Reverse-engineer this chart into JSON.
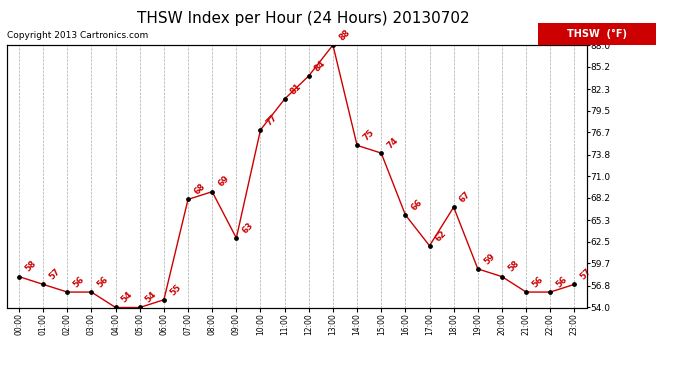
{
  "title": "THSW Index per Hour (24 Hours) 20130702",
  "copyright": "Copyright 2013 Cartronics.com",
  "legend_label": "THSW  (°F)",
  "hours": [
    "00:00",
    "01:00",
    "02:00",
    "03:00",
    "04:00",
    "05:00",
    "06:00",
    "07:00",
    "08:00",
    "09:00",
    "10:00",
    "11:00",
    "12:00",
    "13:00",
    "14:00",
    "15:00",
    "16:00",
    "17:00",
    "18:00",
    "19:00",
    "20:00",
    "21:00",
    "22:00",
    "23:00"
  ],
  "values": [
    58,
    57,
    56,
    56,
    54,
    54,
    55,
    68,
    69,
    63,
    77,
    81,
    84,
    88,
    75,
    74,
    66,
    62,
    67,
    59,
    58,
    56,
    56,
    57
  ],
  "line_color": "#cc0000",
  "marker_color": "#000000",
  "grid_color": "#aaaaaa",
  "background_color": "#ffffff",
  "ylim": [
    54.0,
    88.0
  ],
  "yticks": [
    54.0,
    56.8,
    59.7,
    62.5,
    65.3,
    68.2,
    71.0,
    73.8,
    76.7,
    79.5,
    82.3,
    85.2,
    88.0
  ],
  "title_fontsize": 11,
  "annotation_fontsize": 6,
  "legend_bg": "#cc0000",
  "legend_text_color": "#ffffff",
  "copyright_fontsize": 6.5
}
